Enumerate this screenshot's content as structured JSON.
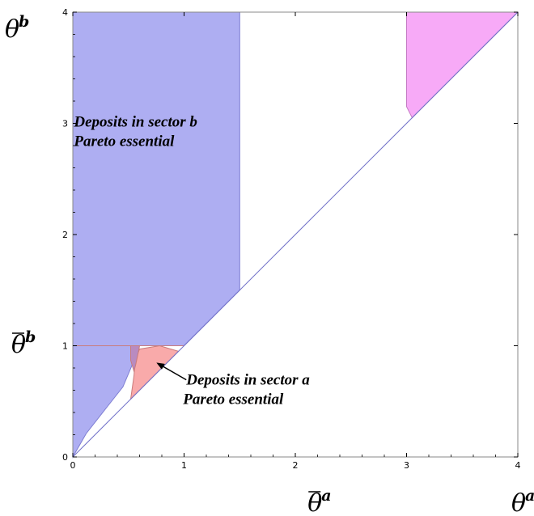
{
  "chart_data": {
    "type": "area",
    "x_range": [
      0,
      4
    ],
    "y_range": [
      0,
      4
    ],
    "x_ticks": [
      "0",
      "1",
      "2",
      "3",
      "4"
    ],
    "y_ticks": [
      "0",
      "1",
      "2",
      "3",
      "4"
    ],
    "grid": false,
    "x_axis": {
      "symbol": "θ",
      "sup": "a"
    },
    "y_axis": {
      "symbol": "θ",
      "sup": "b"
    },
    "x_threshold": {
      "symbol": "θ",
      "sup": "a",
      "value": 1.5
    },
    "y_threshold": {
      "symbol": "θ",
      "sup": "b",
      "value": 1
    },
    "diagonal": [
      [
        0,
        0
      ],
      [
        4,
        4
      ]
    ],
    "colors": {
      "blue_fill": "#aeaef2",
      "blue_edge": "#7d7dd2",
      "pink_fill": "#f9aaaa",
      "pink_edge": "#c97b7b",
      "overlap_fill": "#b98bc0",
      "magenta_fill": "#f7aaf7",
      "magenta_edge": "#c47bc4",
      "diagonal": "#7070c8",
      "frame": "#888888"
    },
    "regions": [
      {
        "id": "blue-upper",
        "color": "blue",
        "points": [
          [
            0,
            1
          ],
          [
            0,
            4
          ],
          [
            1.5,
            4
          ],
          [
            1.5,
            1.5
          ],
          [
            1,
            1
          ]
        ]
      },
      {
        "id": "blue-lower",
        "color": "blue",
        "points": [
          [
            0,
            0
          ],
          [
            0.12,
            0.21
          ],
          [
            0.3,
            0.44
          ],
          [
            0.45,
            0.63
          ],
          [
            0.53,
            0.82
          ],
          [
            0.54,
            1
          ],
          [
            0,
            1
          ]
        ]
      },
      {
        "id": "red",
        "color": "pink",
        "points": [
          [
            0.52,
            0.52
          ],
          [
            0.55,
            0.73
          ],
          [
            0.56,
            0.87
          ],
          [
            0.6,
            0.97
          ],
          [
            0.78,
            1
          ],
          [
            0.95,
            0.95
          ]
        ]
      },
      {
        "id": "overlap",
        "color": "overlap",
        "points": [
          [
            0.52,
            1
          ],
          [
            0.52,
            0.87
          ],
          [
            0.55,
            0.77
          ],
          [
            0.565,
            0.83
          ],
          [
            0.595,
            0.97
          ],
          [
            0.6,
            1
          ]
        ]
      },
      {
        "id": "magenta",
        "color": "magenta",
        "points": [
          [
            3,
            4
          ],
          [
            4,
            4
          ],
          [
            3.05,
            3.05
          ],
          [
            3,
            3.15
          ]
        ]
      }
    ],
    "annotations": [
      {
        "lines": [
          "Deposits in sector b",
          "Pareto essential"
        ],
        "x": 0.01,
        "y": 2.97
      },
      {
        "lines": [
          "Deposits in sector a",
          "Pareto essential"
        ],
        "x": 1.02,
        "y": 0.65,
        "arrow_to": [
          0.72,
          0.87
        ]
      }
    ]
  }
}
